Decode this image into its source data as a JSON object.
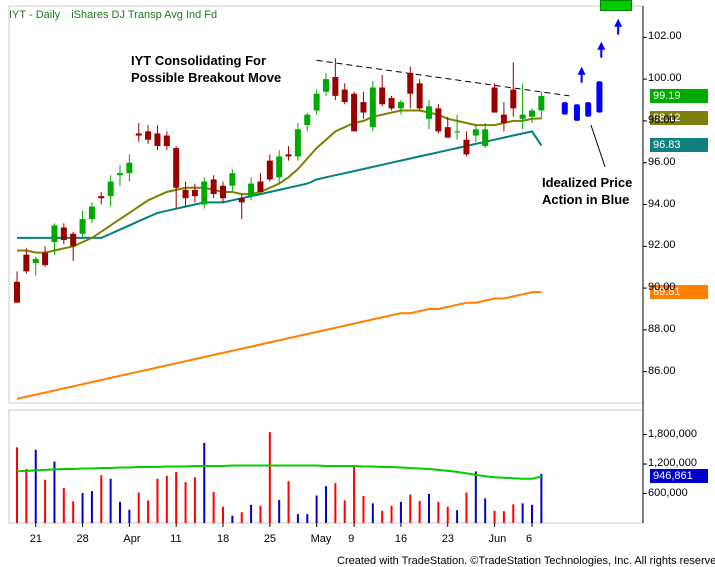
{
  "title": {
    "symbol": "IYT - Daily",
    "name": "iShares DJ Transp Avg Ind Fd"
  },
  "annotations": {
    "top_line1": "IYT Consolidating For",
    "top_line2": "Possible Breakout Move",
    "bottom_line1": "Idealized Price",
    "bottom_line2": "Action in Blue"
  },
  "footer": "Created with TradeStation. ©TradeStation Technologies, Inc. All rights reserved.",
  "badges": [
    {
      "text": "99.19",
      "bg": "#00aa00",
      "color": "#ffffff",
      "value": 99.19
    },
    {
      "text": "98.12",
      "bg": "#7f7f10",
      "color": "#ffffff",
      "value": 98.12
    },
    {
      "text": "96.83",
      "bg": "#0f7f7f",
      "color": "#ffffff",
      "value": 96.83
    },
    {
      "text": "89.81",
      "bg": "#ff7f00",
      "color": "#ffffff",
      "value": 89.81
    },
    {
      "text": "946,861",
      "bg": "#0000cc",
      "color": "#ffffff",
      "value": 946861
    }
  ],
  "colors": {
    "up_candle": "#00aa00",
    "down_candle": "#990000",
    "ma_short": "#808000",
    "ma_mid": "#008080",
    "ma_long": "#ff7f00",
    "projection": "#0000ff",
    "vol_up": "#0000cc",
    "vol_down": "#ff0000",
    "vol_ma": "#00cc00",
    "trendline": "#000000"
  },
  "chart_data": {
    "type": "candlestick",
    "y_ticks": [
      "102.00",
      "100.00",
      "98.00",
      "96.00",
      "94.00",
      "92.00",
      "90.00",
      "88.00",
      "86.00"
    ],
    "y_tick_values": [
      102,
      100,
      98,
      96,
      94,
      92,
      90,
      88,
      86
    ],
    "ylim": [
      84.5,
      103.5
    ],
    "volume_ticks": [
      "1,800,000",
      "1,200,000",
      "600,000"
    ],
    "volume_tick_values": [
      1800000,
      1200000,
      600000
    ],
    "volume_lim": [
      0,
      2300000
    ],
    "x_ticks": [
      "21",
      "28",
      "Apr",
      "11",
      "18",
      "25",
      "May",
      "9",
      "16",
      "23",
      "Jun",
      "6"
    ],
    "x_tick_index": [
      2,
      7,
      12,
      17,
      22,
      27,
      32,
      36,
      41,
      46,
      51,
      55
    ],
    "candles": [
      {
        "o": 90.3,
        "h": 90.8,
        "l": 89.4,
        "c": 89.3
      },
      {
        "o": 91.6,
        "h": 91.9,
        "l": 90.7,
        "c": 90.8
      },
      {
        "o": 91.2,
        "h": 91.5,
        "l": 90.6,
        "c": 91.4
      },
      {
        "o": 91.7,
        "h": 92.0,
        "l": 91.0,
        "c": 91.1
      },
      {
        "o": 92.2,
        "h": 93.1,
        "l": 91.6,
        "c": 93.0
      },
      {
        "o": 92.9,
        "h": 93.1,
        "l": 92.1,
        "c": 92.3
      },
      {
        "o": 92.6,
        "h": 92.7,
        "l": 91.3,
        "c": 92.0
      },
      {
        "o": 92.6,
        "h": 93.7,
        "l": 92.4,
        "c": 93.3
      },
      {
        "o": 93.3,
        "h": 94.1,
        "l": 93.1,
        "c": 93.9
      },
      {
        "o": 94.4,
        "h": 94.6,
        "l": 94.0,
        "c": 94.3
      },
      {
        "o": 94.4,
        "h": 95.4,
        "l": 93.9,
        "c": 95.1
      },
      {
        "o": 95.4,
        "h": 95.9,
        "l": 94.9,
        "c": 95.5
      },
      {
        "o": 95.5,
        "h": 96.4,
        "l": 95.1,
        "c": 96.0
      },
      {
        "o": 97.4,
        "h": 97.9,
        "l": 97.0,
        "c": 97.3
      },
      {
        "o": 97.5,
        "h": 97.8,
        "l": 96.9,
        "c": 97.1
      },
      {
        "o": 97.4,
        "h": 97.8,
        "l": 96.6,
        "c": 96.8
      },
      {
        "o": 97.3,
        "h": 97.5,
        "l": 96.6,
        "c": 96.8
      },
      {
        "o": 96.7,
        "h": 96.8,
        "l": 93.8,
        "c": 94.8
      },
      {
        "o": 94.7,
        "h": 95.1,
        "l": 93.9,
        "c": 94.3
      },
      {
        "o": 94.7,
        "h": 95.0,
        "l": 94.1,
        "c": 94.4
      },
      {
        "o": 94.0,
        "h": 95.3,
        "l": 93.8,
        "c": 95.1
      },
      {
        "o": 95.2,
        "h": 95.4,
        "l": 94.3,
        "c": 94.5
      },
      {
        "o": 94.9,
        "h": 95.1,
        "l": 94.1,
        "c": 94.3
      },
      {
        "o": 94.9,
        "h": 95.7,
        "l": 94.6,
        "c": 95.5
      },
      {
        "o": 94.3,
        "h": 94.5,
        "l": 93.3,
        "c": 94.1
      },
      {
        "o": 94.4,
        "h": 95.3,
        "l": 94.2,
        "c": 95.0
      },
      {
        "o": 95.1,
        "h": 95.5,
        "l": 94.6,
        "c": 94.6
      },
      {
        "o": 96.1,
        "h": 96.4,
        "l": 95.1,
        "c": 95.2
      },
      {
        "o": 95.3,
        "h": 96.6,
        "l": 95.0,
        "c": 96.3
      },
      {
        "o": 96.4,
        "h": 96.8,
        "l": 96.1,
        "c": 96.3
      },
      {
        "o": 96.3,
        "h": 97.9,
        "l": 96.1,
        "c": 97.6
      },
      {
        "o": 97.8,
        "h": 98.4,
        "l": 97.5,
        "c": 98.3
      },
      {
        "o": 98.5,
        "h": 99.5,
        "l": 98.3,
        "c": 99.3
      },
      {
        "o": 99.4,
        "h": 100.3,
        "l": 99.2,
        "c": 100.0
      },
      {
        "o": 100.1,
        "h": 101.0,
        "l": 99.0,
        "c": 99.2
      },
      {
        "o": 99.5,
        "h": 99.8,
        "l": 98.8,
        "c": 98.9
      },
      {
        "o": 99.3,
        "h": 99.4,
        "l": 97.6,
        "c": 97.5
      },
      {
        "o": 98.9,
        "h": 99.4,
        "l": 98.1,
        "c": 98.4
      },
      {
        "o": 97.7,
        "h": 99.9,
        "l": 97.5,
        "c": 99.6
      },
      {
        "o": 99.6,
        "h": 100.2,
        "l": 98.7,
        "c": 98.8
      },
      {
        "o": 99.1,
        "h": 99.2,
        "l": 98.5,
        "c": 98.6
      },
      {
        "o": 98.6,
        "h": 99.0,
        "l": 98.3,
        "c": 98.9
      },
      {
        "o": 100.3,
        "h": 100.6,
        "l": 98.6,
        "c": 99.3
      },
      {
        "o": 99.8,
        "h": 100.0,
        "l": 98.5,
        "c": 98.6
      },
      {
        "o": 98.1,
        "h": 99.0,
        "l": 97.6,
        "c": 98.7
      },
      {
        "o": 98.6,
        "h": 98.8,
        "l": 97.4,
        "c": 97.5
      },
      {
        "o": 97.7,
        "h": 98.2,
        "l": 97.2,
        "c": 97.2
      },
      {
        "o": 97.5,
        "h": 98.3,
        "l": 97.1,
        "c": 97.5
      },
      {
        "o": 97.1,
        "h": 97.5,
        "l": 96.3,
        "c": 96.4
      },
      {
        "o": 97.3,
        "h": 97.8,
        "l": 97.0,
        "c": 97.6
      },
      {
        "o": 96.8,
        "h": 97.9,
        "l": 96.7,
        "c": 97.6
      },
      {
        "o": 99.6,
        "h": 99.8,
        "l": 98.4,
        "c": 98.4
      },
      {
        "o": 98.3,
        "h": 98.9,
        "l": 97.5,
        "c": 97.9
      },
      {
        "o": 99.5,
        "h": 100.8,
        "l": 98.2,
        "c": 98.6
      },
      {
        "o": 98.1,
        "h": 99.8,
        "l": 97.6,
        "c": 98.3
      },
      {
        "o": 98.2,
        "h": 98.6,
        "l": 97.9,
        "c": 98.5
      },
      {
        "o": 98.5,
        "h": 99.4,
        "l": 98.1,
        "c": 99.2
      }
    ],
    "trendline": [
      {
        "i": 32,
        "v": 100.9
      },
      {
        "i": 59,
        "v": 99.2
      }
    ],
    "ma_short": [
      91.8,
      91.8,
      91.7,
      91.7,
      91.8,
      91.9,
      92.0,
      92.2,
      92.4,
      92.7,
      93.0,
      93.3,
      93.6,
      93.9,
      94.2,
      94.4,
      94.6,
      94.7,
      94.8,
      94.8,
      94.8,
      94.7,
      94.6,
      94.6,
      94.5,
      94.5,
      94.6,
      94.8,
      95.0,
      95.3,
      95.7,
      96.2,
      96.7,
      97.1,
      97.5,
      97.7,
      97.9,
      98.0,
      98.2,
      98.3,
      98.4,
      98.5,
      98.5,
      98.5,
      98.4,
      98.3,
      98.1,
      98.0,
      97.9,
      97.8,
      97.8,
      97.8,
      97.9,
      98.0,
      98.0,
      98.1,
      98.12
    ],
    "ma_mid": [
      92.4,
      92.4,
      92.4,
      92.4,
      92.4,
      92.4,
      92.4,
      92.4,
      92.4,
      92.4,
      92.6,
      92.8,
      93.0,
      93.2,
      93.4,
      93.6,
      93.7,
      93.8,
      93.9,
      94.0,
      94.1,
      94.1,
      94.1,
      94.2,
      94.3,
      94.4,
      94.5,
      94.6,
      94.7,
      94.8,
      94.9,
      95.0,
      95.2,
      95.3,
      95.4,
      95.5,
      95.6,
      95.7,
      95.8,
      95.9,
      96.0,
      96.1,
      96.2,
      96.3,
      96.4,
      96.5,
      96.6,
      96.7,
      96.8,
      96.9,
      97.0,
      97.1,
      97.2,
      97.3,
      97.4,
      97.5,
      96.83
    ],
    "ma_long": [
      84.7,
      84.8,
      84.9,
      85.0,
      85.1,
      85.2,
      85.3,
      85.4,
      85.5,
      85.6,
      85.7,
      85.8,
      85.9,
      86.0,
      86.1,
      86.2,
      86.3,
      86.4,
      86.5,
      86.6,
      86.7,
      86.8,
      86.9,
      87.0,
      87.1,
      87.2,
      87.3,
      87.4,
      87.5,
      87.6,
      87.7,
      87.8,
      87.9,
      88.0,
      88.1,
      88.2,
      88.3,
      88.4,
      88.5,
      88.6,
      88.7,
      88.8,
      88.8,
      88.9,
      89.0,
      89.0,
      89.1,
      89.2,
      89.3,
      89.3,
      89.4,
      89.5,
      89.5,
      89.6,
      89.7,
      89.8,
      89.81
    ],
    "projection": [
      {
        "i": 58.5,
        "o": 98.9,
        "c": 98.3
      },
      {
        "i": 59.8,
        "o": 98.8,
        "c": 98.0
      },
      {
        "i": 61.0,
        "o": 98.2,
        "c": 98.9
      },
      {
        "i": 62.2,
        "o": 98.4,
        "c": 99.9
      }
    ],
    "projection_arrows": [
      {
        "i": 60.3,
        "v": 100.4
      },
      {
        "i": 62.4,
        "v": 101.6
      },
      {
        "i": 64.2,
        "v": 102.7
      }
    ],
    "volume": [
      1540000,
      1100000,
      1490000,
      880000,
      1250000,
      710000,
      440000,
      610000,
      650000,
      970000,
      900000,
      430000,
      270000,
      620000,
      460000,
      900000,
      960000,
      1040000,
      830000,
      930000,
      1630000,
      630000,
      330000,
      150000,
      220000,
      370000,
      350000,
      1850000,
      470000,
      850000,
      180000,
      180000,
      560000,
      750000,
      810000,
      460000,
      1180000,
      550000,
      400000,
      250000,
      350000,
      430000,
      580000,
      450000,
      590000,
      430000,
      330000,
      260000,
      620000,
      1050000,
      500000,
      250000,
      240000,
      380000,
      400000,
      370000,
      1000000
    ],
    "volume_ma": [
      1050000,
      1060000,
      1070000,
      1080000,
      1090000,
      1100000,
      1100000,
      1110000,
      1110000,
      1120000,
      1120000,
      1130000,
      1130000,
      1140000,
      1140000,
      1140000,
      1150000,
      1150000,
      1150000,
      1160000,
      1160000,
      1160000,
      1160000,
      1170000,
      1170000,
      1170000,
      1170000,
      1170000,
      1170000,
      1170000,
      1170000,
      1170000,
      1170000,
      1160000,
      1160000,
      1160000,
      1160000,
      1150000,
      1150000,
      1140000,
      1140000,
      1130000,
      1120000,
      1110000,
      1100000,
      1080000,
      1060000,
      1040000,
      1010000,
      980000,
      950000,
      930000,
      920000,
      910000,
      900000,
      900000,
      946861
    ]
  }
}
